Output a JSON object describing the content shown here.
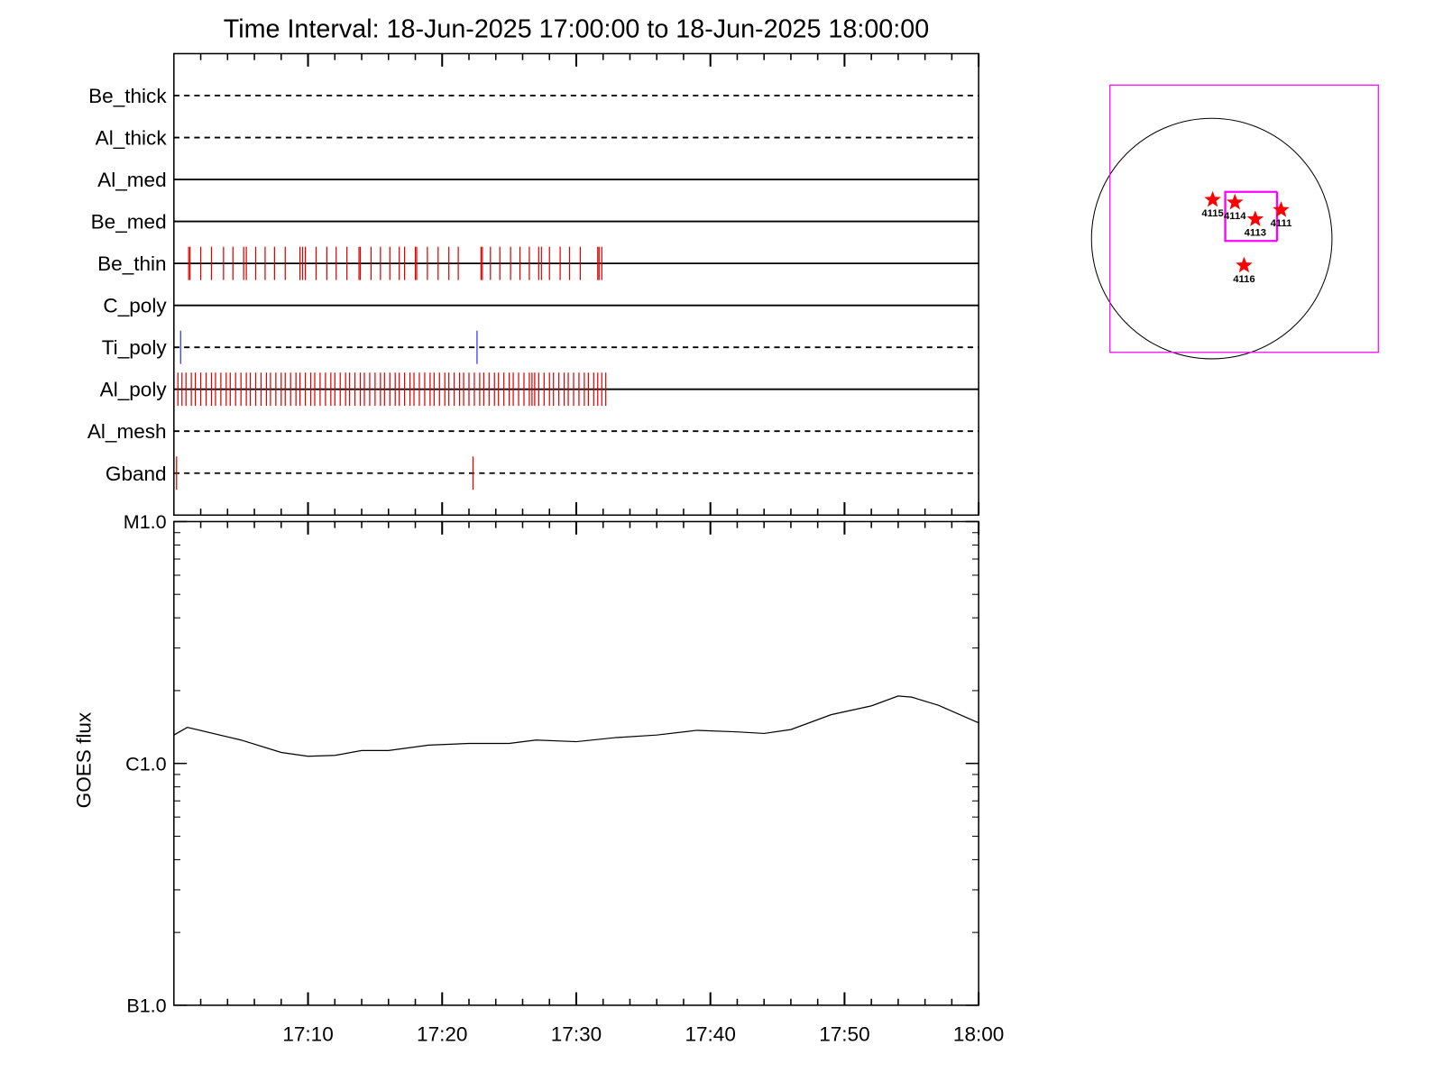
{
  "chart_data": [
    {
      "type": "events",
      "title": "Time Interval: 18-Jun-2025 17:00:00 to 18-Jun-2025 18:00:00",
      "xlim": [
        0,
        60
      ],
      "xticks": [
        10,
        20,
        30,
        40,
        50,
        60
      ],
      "xminorticks": [
        2,
        4,
        6,
        8,
        12,
        14,
        16,
        18,
        22,
        24,
        26,
        28,
        32,
        34,
        36,
        38,
        42,
        44,
        46,
        48,
        52,
        54,
        56,
        58
      ],
      "rows": [
        {
          "name": "Be_thick",
          "style": "dashed",
          "events": []
        },
        {
          "name": "Al_thick",
          "style": "dashed",
          "events": []
        },
        {
          "name": "Al_med",
          "style": "solid",
          "events": []
        },
        {
          "name": "Be_med",
          "style": "solid",
          "events": []
        },
        {
          "name": "Be_thin",
          "style": "solid",
          "event_color": "#e00000",
          "events": [
            1.1,
            1.2,
            2.0,
            2.8,
            3.7,
            4.4,
            5.2,
            5.4,
            6.1,
            6.8,
            7.5,
            8.3,
            9.4,
            9.6,
            9.8,
            10.6,
            11.4,
            12.1,
            12.9,
            13.8,
            13.9,
            14.7,
            15.4,
            16.1,
            16.8,
            17.2,
            18.0,
            18.1,
            18.9,
            19.7,
            20.5,
            21.2,
            22.9,
            23.0,
            23.6,
            24.3,
            25.1,
            25.8,
            26.5,
            27.2,
            27.4,
            28.0,
            28.8,
            29.5,
            30.3,
            31.6,
            31.7,
            31.9
          ]
        },
        {
          "name": "C_poly",
          "style": "solid",
          "events": []
        },
        {
          "name": "Ti_poly",
          "style": "dashed",
          "event_color": "#3030ff",
          "events": [
            0.5,
            22.6
          ]
        },
        {
          "name": "Al_poly",
          "style": "solid",
          "event_color": "#e00000",
          "events": [
            0.3,
            0.6,
            0.9,
            1.3,
            1.6,
            2.0,
            2.4,
            2.8,
            3.1,
            3.5,
            3.9,
            4.2,
            4.6,
            5.0,
            5.4,
            5.7,
            6.1,
            6.5,
            6.9,
            7.2,
            7.6,
            8.0,
            8.3,
            8.7,
            9.1,
            9.4,
            9.8,
            10.2,
            10.5,
            10.9,
            11.3,
            11.7,
            12.0,
            12.4,
            12.8,
            13.1,
            13.5,
            13.9,
            14.2,
            14.6,
            15.0,
            15.4,
            15.7,
            16.1,
            16.5,
            16.8,
            17.2,
            17.6,
            17.9,
            18.3,
            18.7,
            19.1,
            19.4,
            19.8,
            20.2,
            20.5,
            20.9,
            21.3,
            21.6,
            22.0,
            22.4,
            22.8,
            23.1,
            23.5,
            23.9,
            24.2,
            24.6,
            25.0,
            25.3,
            25.7,
            26.1,
            26.5,
            26.7,
            26.9,
            27.2,
            27.6,
            28.0,
            28.3,
            28.7,
            29.1,
            29.4,
            29.8,
            30.2,
            30.6,
            30.9,
            31.3,
            31.6,
            31.9,
            32.2
          ]
        },
        {
          "name": "Al_mesh",
          "style": "dashed",
          "events": []
        },
        {
          "name": "Gband",
          "style": "dashed",
          "event_color": "#e00000",
          "events": [
            0.2,
            22.3
          ]
        }
      ]
    },
    {
      "type": "line",
      "ylabel": "GOES flux",
      "log_scale": true,
      "color": "#000000",
      "xlim": [
        0,
        60
      ],
      "xticks": [
        {
          "value": 10,
          "label": "17:10"
        },
        {
          "value": 20,
          "label": "17:20"
        },
        {
          "value": 30,
          "label": "17:30"
        },
        {
          "value": 40,
          "label": "17:40"
        },
        {
          "value": 50,
          "label": "17:50"
        },
        {
          "value": 60,
          "label": "18:00"
        }
      ],
      "xminorticks": [
        2,
        4,
        6,
        8,
        12,
        14,
        16,
        18,
        22,
        24,
        26,
        28,
        32,
        34,
        36,
        38,
        42,
        44,
        46,
        48,
        52,
        54,
        56,
        58
      ],
      "ylim": [
        1e-07,
        1e-05
      ],
      "yticks": [
        {
          "value": 1e-07,
          "label": "B1.0"
        },
        {
          "value": 1e-06,
          "label": "C1.0"
        },
        {
          "value": 1e-05,
          "label": "M1.0"
        }
      ],
      "yminorticks": [
        2e-07,
        3e-07,
        4e-07,
        5e-07,
        6e-07,
        7e-07,
        8e-07,
        9e-07,
        2e-06,
        3e-06,
        4e-06,
        5e-06,
        6e-06,
        7e-06,
        8e-06,
        9e-06
      ],
      "x": [
        0,
        1,
        5,
        8,
        10,
        12,
        14,
        16,
        19,
        22,
        25,
        27,
        30,
        33,
        36,
        39,
        42,
        44,
        46,
        49,
        52,
        54,
        55,
        57,
        60
      ],
      "values": [
        1.31e-06,
        1.41e-06,
        1.25e-06,
        1.11e-06,
        1.07e-06,
        1.08e-06,
        1.13e-06,
        1.13e-06,
        1.19e-06,
        1.21e-06,
        1.21e-06,
        1.25e-06,
        1.23e-06,
        1.28e-06,
        1.31e-06,
        1.37e-06,
        1.35e-06,
        1.33e-06,
        1.38e-06,
        1.59e-06,
        1.73e-06,
        1.9e-06,
        1.88e-06,
        1.74e-06,
        1.47e-06
      ]
    },
    {
      "type": "map",
      "solar_radius": 945,
      "box_color": "#ff00ff",
      "star_color": "#ff0000",
      "boxes": [
        [
          -800,
          -894,
          1309,
          1207
        ],
        [
          102,
          -22,
          509,
          371
        ],
        [
          110,
          -15,
          517,
          364
        ]
      ],
      "regions": [
        {
          "label": "4115",
          "x": 7,
          "y": 305
        },
        {
          "label": "4114",
          "x": 182,
          "y": 284
        },
        {
          "label": "4113",
          "x": 342,
          "y": 153
        },
        {
          "label": "4111",
          "x": 545,
          "y": 225
        },
        {
          "label": "4116",
          "x": 254,
          "y": -211
        }
      ]
    }
  ]
}
